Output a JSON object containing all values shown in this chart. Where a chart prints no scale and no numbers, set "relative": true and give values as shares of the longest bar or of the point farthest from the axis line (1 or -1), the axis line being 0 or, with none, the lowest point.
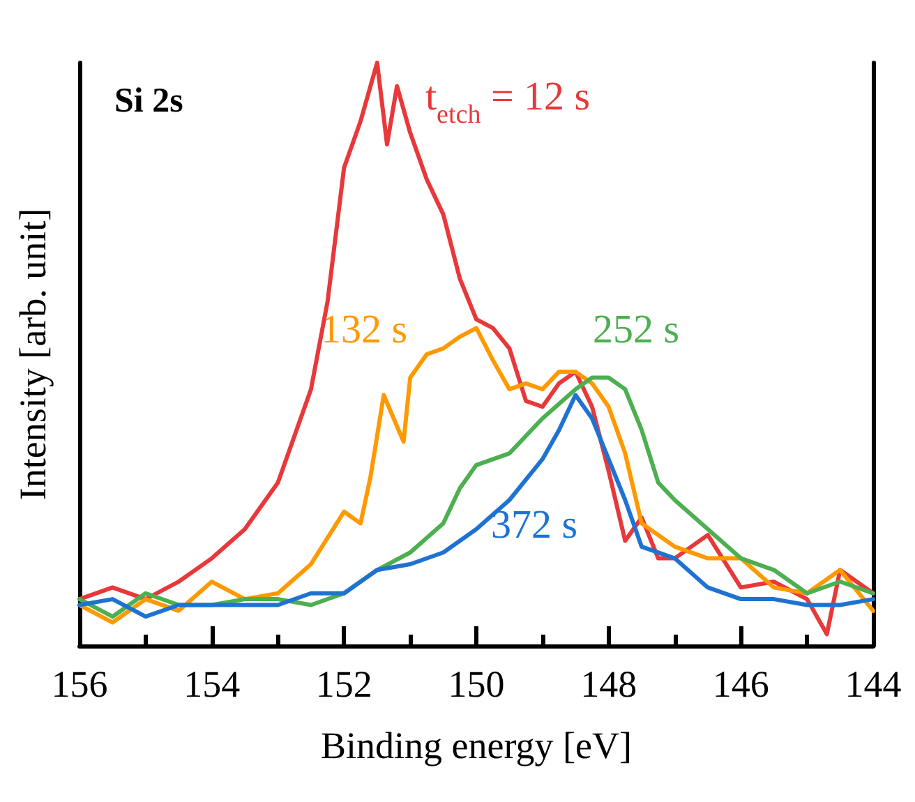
{
  "chart_data": {
    "type": "line",
    "xlabel": "Binding energy [eV]",
    "ylabel": "Intensity [arb. unit]",
    "annotations": [
      "Si 2s"
    ],
    "relative": true,
    "xlim": [
      156,
      144
    ],
    "xticks": [
      156,
      154,
      152,
      150,
      148,
      146,
      144
    ],
    "grid": false,
    "legend": false,
    "marker": "none",
    "line_style": "solid",
    "series": [
      {
        "name": "t$_{etch}$ = 12 s",
        "color": "#e8383a",
        "x": [
          156,
          155.5,
          155,
          154.5,
          154,
          153.5,
          153,
          152.5,
          152.25,
          152,
          151.75,
          151.5,
          151.35,
          151.2,
          151,
          150.75,
          150.5,
          150.25,
          150,
          149.75,
          149.5,
          149.25,
          149,
          148.75,
          148.5,
          148.25,
          148,
          147.75,
          147.5,
          147.25,
          147,
          146.5,
          146,
          145.5,
          145,
          144.7,
          144.5,
          144
        ],
        "values": [
          0.08,
          0.1,
          0.08,
          0.11,
          0.15,
          0.2,
          0.28,
          0.44,
          0.59,
          0.82,
          0.9,
          1,
          0.86,
          0.96,
          0.88,
          0.8,
          0.74,
          0.63,
          0.56,
          0.545,
          0.51,
          0.42,
          0.41,
          0.45,
          0.47,
          0.41,
          0.3,
          0.18,
          0.22,
          0.15,
          0.15,
          0.19,
          0.1,
          0.11,
          0.08,
          0.02,
          0.13,
          0.09
        ]
      },
      {
        "name": "132 s",
        "color": "#ff9900",
        "x": [
          156,
          155.5,
          155,
          154.5,
          154,
          153.5,
          153,
          152.5,
          152,
          151.75,
          151.6,
          151.4,
          151.1,
          151,
          150.75,
          150.5,
          150.25,
          150,
          149.75,
          149.5,
          149.25,
          149,
          148.75,
          148.5,
          148.25,
          148,
          147.75,
          147.5,
          147,
          146.5,
          146,
          145.5,
          145,
          144.5,
          144
        ],
        "values": [
          0.07,
          0.04,
          0.08,
          0.06,
          0.11,
          0.08,
          0.09,
          0.14,
          0.23,
          0.21,
          0.29,
          0.43,
          0.35,
          0.46,
          0.5,
          0.51,
          0.53,
          0.545,
          0.49,
          0.44,
          0.45,
          0.44,
          0.47,
          0.47,
          0.45,
          0.41,
          0.33,
          0.21,
          0.17,
          0.15,
          0.15,
          0.1,
          0.09,
          0.13,
          0.06
        ]
      },
      {
        "name": "252 s",
        "color": "#4caf50",
        "x": [
          156,
          155.5,
          155,
          154.5,
          154,
          153.5,
          153,
          152.5,
          152,
          151.5,
          151,
          150.5,
          150.25,
          150,
          149.5,
          149,
          148.5,
          148.25,
          148,
          147.75,
          147.5,
          147.25,
          147,
          146.5,
          146,
          145.5,
          145,
          144.5,
          144
        ],
        "values": [
          0.08,
          0.05,
          0.09,
          0.07,
          0.07,
          0.08,
          0.08,
          0.07,
          0.09,
          0.13,
          0.16,
          0.21,
          0.27,
          0.31,
          0.33,
          0.39,
          0.44,
          0.46,
          0.46,
          0.44,
          0.37,
          0.28,
          0.25,
          0.2,
          0.15,
          0.13,
          0.09,
          0.11,
          0.09
        ]
      },
      {
        "name": "372 s",
        "color": "#1e73d2",
        "x": [
          156,
          155.5,
          155,
          154.5,
          154,
          153.5,
          153,
          152.5,
          152,
          151.5,
          151,
          150.5,
          150,
          149.5,
          149,
          148.75,
          148.5,
          148.25,
          148,
          147.75,
          147.5,
          147,
          146.5,
          146,
          145.5,
          145,
          144.5,
          144
        ],
        "values": [
          0.07,
          0.08,
          0.05,
          0.07,
          0.07,
          0.07,
          0.07,
          0.09,
          0.09,
          0.13,
          0.14,
          0.16,
          0.2,
          0.25,
          0.32,
          0.37,
          0.43,
          0.39,
          0.32,
          0.25,
          0.17,
          0.15,
          0.1,
          0.08,
          0.08,
          0.07,
          0.07,
          0.08
        ]
      }
    ]
  }
}
